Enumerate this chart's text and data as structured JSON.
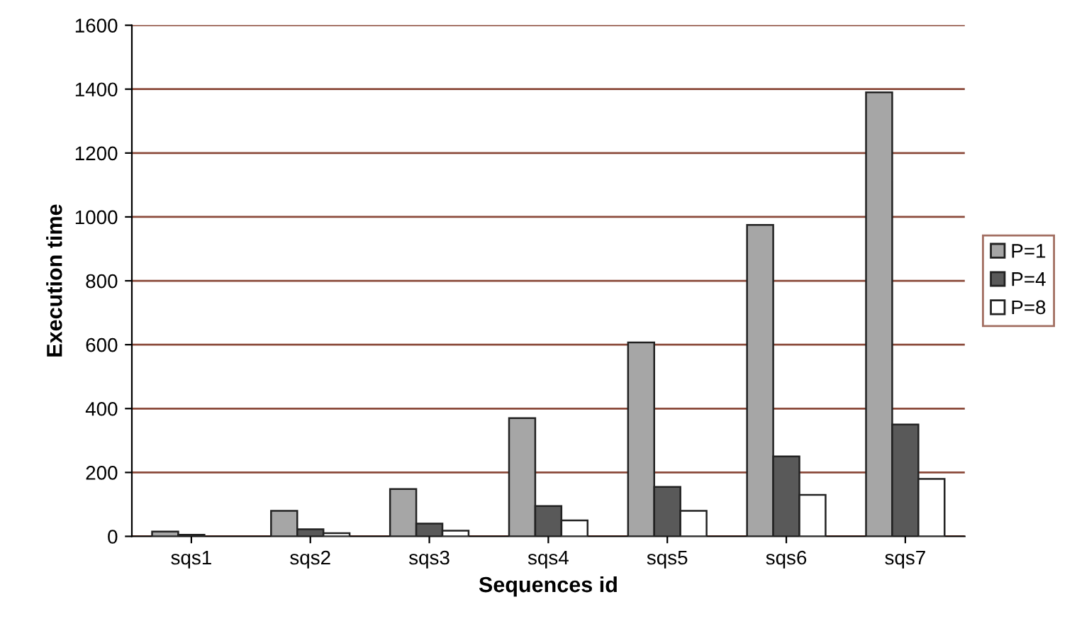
{
  "chart_data": {
    "type": "bar",
    "xlabel": "Sequences id",
    "ylabel": "Execution time",
    "categories": [
      "sqs1",
      "sqs2",
      "sqs3",
      "sqs4",
      "sqs5",
      "sqs6",
      "sqs7"
    ],
    "series": [
      {
        "name": "P=1",
        "color": "#a6a6a6",
        "values": [
          15,
          80,
          148,
          370,
          607,
          975,
          1390
        ]
      },
      {
        "name": "P=4",
        "color": "#595959",
        "values": [
          5,
          22,
          40,
          95,
          155,
          250,
          350
        ]
      },
      {
        "name": "P=8",
        "color": "#ffffff",
        "values": [
          null,
          10,
          18,
          50,
          80,
          130,
          180
        ]
      }
    ],
    "ylim": [
      0,
      1600
    ],
    "yticks": [
      0,
      200,
      400,
      600,
      800,
      1000,
      1200,
      1400,
      1600
    ],
    "grid": "y",
    "legend": "right"
  }
}
